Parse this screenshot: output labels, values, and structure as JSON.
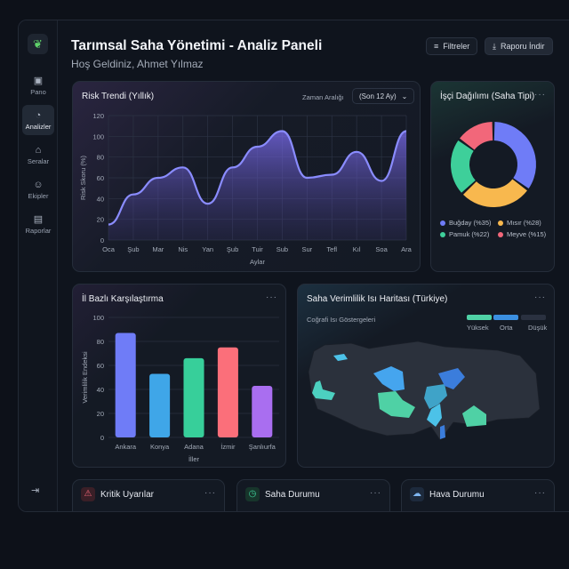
{
  "header": {
    "title": "Tarımsal Saha Yönetimi - Analiz Paneli",
    "subtitle": "Hoş Geldiniz, Ahmet Yılmaz",
    "filter_label": "Filtreler",
    "download_label": "Raporu İndir"
  },
  "sidebar": {
    "items": [
      {
        "label": "Pano",
        "icon": "grid-icon"
      },
      {
        "label": "Analizler",
        "icon": "pie-chart-icon",
        "active": true
      },
      {
        "label": "Seralar",
        "icon": "home-icon"
      },
      {
        "label": "Ekipler",
        "icon": "users-icon"
      },
      {
        "label": "Raporlar",
        "icon": "document-icon"
      }
    ]
  },
  "risk": {
    "title": "Risk Trendi (Yıllık)",
    "range_label": "Zaman Aralığı",
    "range_value": "(Son 12 Ay)"
  },
  "workers": {
    "title": "İşçi Dağılımı (Saha Tipi)"
  },
  "provinces": {
    "title": "İl Bazlı Karşılaştırma"
  },
  "heatmap": {
    "title": "Saha Verimlilik Isı Haritası (Türkiye)",
    "subtitle": "Coğrafi Isı Göstergeleri",
    "legend": [
      {
        "label": "Yüksek",
        "color": "#4fd1a5"
      },
      {
        "label": "Orta",
        "color": "#3b8fe0"
      },
      {
        "label": "Düşük",
        "color": "#2a3140"
      }
    ]
  },
  "bottom": [
    {
      "title": "Kritik Uyarılar",
      "icon": "warning-icon"
    },
    {
      "title": "Saha Durumu",
      "icon": "status-icon"
    },
    {
      "title": "Hava Durumu",
      "icon": "weather-icon"
    }
  ],
  "chart_data": [
    {
      "type": "area",
      "title": "Risk Trendi (Yıllık)",
      "xlabel": "Aylar",
      "ylabel": "Risk Skoru (%)",
      "ylim": [
        0,
        120
      ],
      "yticks": [
        0,
        20,
        40,
        60,
        80,
        100,
        120
      ],
      "categories": [
        "Oca",
        "Şub",
        "Mar",
        "Nis",
        "Yan",
        "Şub",
        "Tuir",
        "Sub",
        "Sur",
        "Tefl",
        "Kıl",
        "Soa",
        "Ara"
      ],
      "values": [
        15,
        44,
        60,
        70,
        35,
        70,
        90,
        105,
        60,
        63,
        85,
        57,
        105
      ],
      "color": "#7b7ff5"
    },
    {
      "type": "pie",
      "title": "İşçi Dağılımı (Saha Tipi)",
      "labels": [
        "Buğday (%35)",
        "Mısır (%28)",
        "Pamuk (%22)",
        "Meyve (%15)"
      ],
      "values": [
        35,
        28,
        22,
        15
      ],
      "colors": [
        "#6f7cf7",
        "#f8b84e",
        "#3ecf9a",
        "#f2677a"
      ]
    },
    {
      "type": "bar",
      "title": "İl Bazlı Karşılaştırma",
      "xlabel": "İller",
      "ylabel": "Verimlilik Endeksi",
      "ylim": [
        0,
        100
      ],
      "yticks": [
        0,
        20,
        40,
        60,
        80,
        100
      ],
      "categories": [
        "Ankara",
        "Konya",
        "Adana",
        "İzmir",
        "Şanlıurfa"
      ],
      "values": [
        87,
        53,
        66,
        75,
        43
      ],
      "colors": [
        "#6f7cf7",
        "#3fa6e8",
        "#37cf9a",
        "#fb6f7a",
        "#a96ef0"
      ]
    }
  ]
}
